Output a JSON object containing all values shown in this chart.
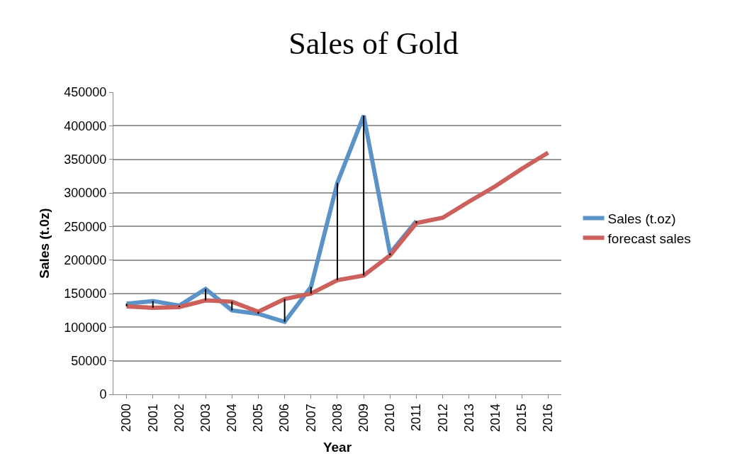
{
  "chart_data": {
    "type": "line",
    "title": "Sales of Gold",
    "xlabel": "Year",
    "ylabel": "Sales (t.0z)",
    "categories": [
      "2000",
      "2001",
      "2002",
      "2003",
      "2004",
      "2005",
      "2006",
      "2007",
      "2008",
      "2009",
      "2010",
      "2011",
      "2012",
      "2013",
      "2014",
      "2015",
      "2016"
    ],
    "series": [
      {
        "name": "Sales (t.oz)",
        "color": "#5b93c8",
        "values": [
          135000,
          139000,
          132000,
          157000,
          125000,
          120000,
          108000,
          160000,
          315000,
          415000,
          210000,
          258000,
          null,
          null,
          null,
          null,
          null
        ],
        "errors": [
          [
            131000,
            135000
          ],
          [
            129000,
            139000
          ],
          [
            130000,
            132000
          ],
          [
            140000,
            157000
          ],
          [
            125000,
            138000
          ],
          [
            120000,
            123000
          ],
          [
            108000,
            142000
          ],
          [
            150000,
            160000
          ],
          [
            170000,
            315000
          ],
          [
            177000,
            415000
          ],
          [
            207000,
            210000
          ],
          [
            255000,
            258000
          ],
          null,
          null,
          null,
          null,
          null
        ]
      },
      {
        "name": "forecast sales",
        "color": "#cc605c",
        "values": [
          131000,
          129000,
          130000,
          140000,
          138000,
          123000,
          142000,
          150000,
          170000,
          177000,
          207000,
          255000,
          263000,
          287000,
          310000,
          336000,
          360000
        ]
      }
    ],
    "ylim": [
      0,
      450000
    ],
    "yticks": [
      0,
      50000,
      100000,
      150000,
      200000,
      250000,
      300000,
      350000,
      400000,
      450000
    ],
    "grid": "y",
    "legend": "right",
    "marker": "none",
    "line_style": "solid"
  }
}
